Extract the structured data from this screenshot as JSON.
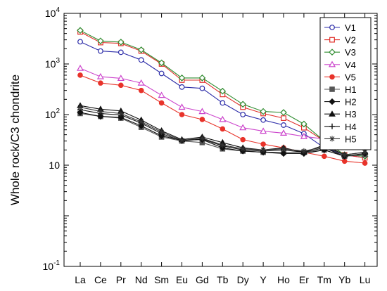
{
  "chart_data": {
    "type": "line",
    "title": "",
    "xlabel": "",
    "ylabel": "Whole rock/C3 chondrite",
    "yscale": "log",
    "ylim": [
      0.1,
      10000
    ],
    "yticks": [
      {
        "value": 0.1,
        "base": "10",
        "exp": "-1"
      },
      {
        "value": 10,
        "base": "10",
        "exp": ""
      },
      {
        "value": 100,
        "base": "10",
        "exp": "2"
      },
      {
        "value": 1000,
        "base": "10",
        "exp": "3"
      },
      {
        "value": 10000,
        "base": "10",
        "exp": "4"
      }
    ],
    "grid": false,
    "legend_position": "top-right",
    "categories": [
      "La",
      "Ce",
      "Pr",
      "Nd",
      "Sm",
      "Eu",
      "Gd",
      "Tb",
      "Dy",
      "Y",
      "Ho",
      "Er",
      "Tm",
      "Yb",
      "Lu"
    ],
    "series": [
      {
        "name": "V1",
        "color": "#2b2ba8",
        "marker": "circle-open",
        "values": [
          2750,
          1800,
          1700,
          1200,
          650,
          350,
          330,
          170,
          100,
          78,
          62,
          42,
          22,
          16,
          14
        ]
      },
      {
        "name": "V2",
        "color": "#e0302a",
        "marker": "square-open",
        "values": [
          4300,
          2650,
          2550,
          1800,
          1000,
          480,
          480,
          250,
          140,
          105,
          85,
          55,
          30,
          16,
          14
        ]
      },
      {
        "name": "V3",
        "color": "#2e8b2e",
        "marker": "diamond-open",
        "values": [
          4600,
          2850,
          2700,
          1900,
          1050,
          530,
          530,
          290,
          160,
          115,
          110,
          65,
          30,
          16,
          15
        ]
      },
      {
        "name": "V4",
        "color": "#cc44cc",
        "marker": "triangle-open",
        "values": [
          820,
          560,
          520,
          420,
          240,
          140,
          115,
          80,
          55,
          47,
          43,
          37,
          33,
          27,
          23
        ]
      },
      {
        "name": "V5",
        "color": "#e8332a",
        "marker": "circle-filled",
        "values": [
          600,
          420,
          380,
          300,
          170,
          100,
          80,
          52,
          32,
          26,
          22,
          18,
          15,
          12,
          11
        ]
      },
      {
        "name": "H1",
        "color": "#555555",
        "marker": "square-filled",
        "values": [
          105,
          92,
          85,
          56,
          36,
          30,
          28,
          21,
          19,
          18,
          18,
          18,
          20,
          15,
          16
        ]
      },
      {
        "name": "H2",
        "color": "#111111",
        "marker": "diamond-filled",
        "values": [
          110,
          92,
          88,
          60,
          38,
          31,
          32,
          22,
          19,
          18,
          17,
          17,
          20,
          15,
          17
        ]
      },
      {
        "name": "H3",
        "color": "#111111",
        "marker": "triangle-filled",
        "values": [
          150,
          128,
          118,
          78,
          48,
          32,
          36,
          28,
          22,
          20,
          22,
          18,
          25,
          16,
          18
        ]
      },
      {
        "name": "H4",
        "color": "#111111",
        "marker": "plus",
        "values": [
          125,
          105,
          98,
          68,
          42,
          30,
          33,
          24,
          20,
          19,
          20,
          18,
          22,
          15,
          17
        ]
      },
      {
        "name": "H5",
        "color": "#333333",
        "marker": "star",
        "values": [
          140,
          115,
          105,
          72,
          45,
          31,
          34,
          25,
          21,
          20,
          21,
          19,
          23,
          16,
          18
        ]
      }
    ]
  }
}
